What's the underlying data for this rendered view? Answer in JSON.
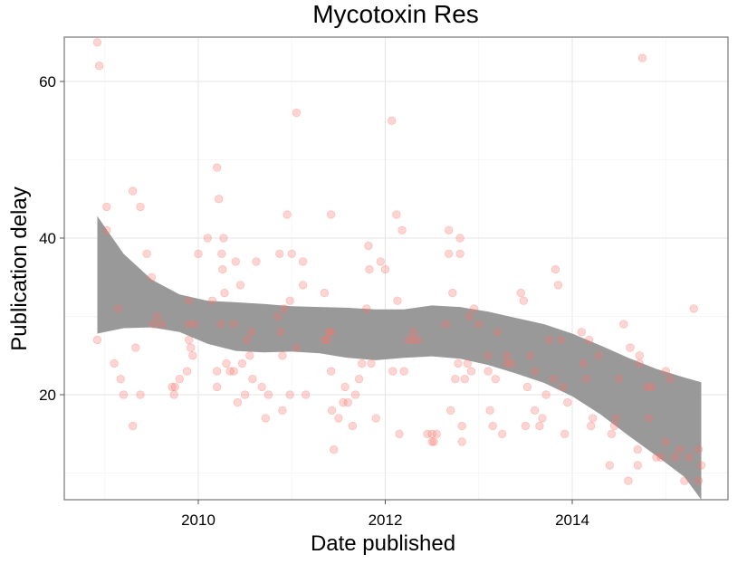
{
  "chart_data": {
    "type": "scatter",
    "title": "Mycotoxin Res",
    "xlabel": "Date published",
    "ylabel": "Publication delay",
    "x_tick_labels": [
      "2010",
      "2012",
      "2014"
    ],
    "x_ticks": [
      2010,
      2012,
      2014
    ],
    "y_tick_labels": [
      "20",
      "40",
      "60"
    ],
    "y_ticks": [
      20,
      40,
      60
    ],
    "xlim": [
      2008.8,
      2015.8
    ],
    "ylim": [
      6.5,
      66
    ],
    "grid": true,
    "legend": "none",
    "point_color": "#F8766D",
    "band_color": "#999999",
    "points": [
      [
        2008.92,
        65
      ],
      [
        2008.94,
        62
      ],
      [
        2008.92,
        27
      ],
      [
        2009.02,
        41
      ],
      [
        2009.02,
        44
      ],
      [
        2009.1,
        24
      ],
      [
        2009.14,
        31
      ],
      [
        2009.17,
        22
      ],
      [
        2009.2,
        20
      ],
      [
        2009.3,
        16
      ],
      [
        2009.3,
        46
      ],
      [
        2009.33,
        26
      ],
      [
        2009.38,
        44
      ],
      [
        2009.38,
        20
      ],
      [
        2009.45,
        38
      ],
      [
        2009.5,
        35
      ],
      [
        2009.52,
        29
      ],
      [
        2009.56,
        30
      ],
      [
        2009.61,
        29
      ],
      [
        2009.72,
        21
      ],
      [
        2009.74,
        20
      ],
      [
        2009.75,
        21
      ],
      [
        2009.8,
        22
      ],
      [
        2009.88,
        23
      ],
      [
        2009.9,
        29
      ],
      [
        2009.9,
        27
      ],
      [
        2009.9,
        32
      ],
      [
        2009.92,
        26
      ],
      [
        2009.94,
        25
      ],
      [
        2009.96,
        29
      ],
      [
        2010.0,
        38
      ],
      [
        2010.1,
        40
      ],
      [
        2010.15,
        32
      ],
      [
        2010.2,
        49
      ],
      [
        2010.2,
        23
      ],
      [
        2010.2,
        21
      ],
      [
        2010.22,
        45
      ],
      [
        2010.24,
        29
      ],
      [
        2010.25,
        38
      ],
      [
        2010.26,
        36
      ],
      [
        2010.27,
        40
      ],
      [
        2010.28,
        33
      ],
      [
        2010.3,
        24
      ],
      [
        2010.34,
        23
      ],
      [
        2010.38,
        29
      ],
      [
        2010.38,
        23
      ],
      [
        2010.4,
        37
      ],
      [
        2010.42,
        19
      ],
      [
        2010.45,
        34
      ],
      [
        2010.47,
        24
      ],
      [
        2010.5,
        20
      ],
      [
        2010.52,
        27
      ],
      [
        2010.55,
        25
      ],
      [
        2010.57,
        28
      ],
      [
        2010.58,
        22
      ],
      [
        2010.62,
        37
      ],
      [
        2010.68,
        21
      ],
      [
        2010.72,
        17
      ],
      [
        2010.75,
        20
      ],
      [
        2010.85,
        30
      ],
      [
        2010.87,
        38
      ],
      [
        2010.88,
        28
      ],
      [
        2010.9,
        18
      ],
      [
        2010.9,
        25
      ],
      [
        2010.92,
        31
      ],
      [
        2010.95,
        43
      ],
      [
        2010.98,
        20
      ],
      [
        2010.98,
        32
      ],
      [
        2011.0,
        38
      ],
      [
        2011.05,
        56
      ],
      [
        2011.05,
        26
      ],
      [
        2011.12,
        37
      ],
      [
        2011.12,
        34
      ],
      [
        2011.15,
        20
      ],
      [
        2011.35,
        33
      ],
      [
        2011.35,
        27
      ],
      [
        2011.38,
        27
      ],
      [
        2011.4,
        28
      ],
      [
        2011.42,
        43
      ],
      [
        2011.42,
        28
      ],
      [
        2011.42,
        23
      ],
      [
        2011.43,
        18
      ],
      [
        2011.45,
        13
      ],
      [
        2011.5,
        17
      ],
      [
        2011.55,
        19
      ],
      [
        2011.57,
        21
      ],
      [
        2011.6,
        19
      ],
      [
        2011.65,
        16
      ],
      [
        2011.68,
        20
      ],
      [
        2011.72,
        22
      ],
      [
        2011.75,
        24
      ],
      [
        2011.8,
        31
      ],
      [
        2011.82,
        39
      ],
      [
        2011.83,
        36
      ],
      [
        2011.85,
        24
      ],
      [
        2011.9,
        17
      ],
      [
        2011.95,
        37
      ],
      [
        2012.0,
        36
      ],
      [
        2012.07,
        55
      ],
      [
        2012.08,
        23
      ],
      [
        2012.12,
        43
      ],
      [
        2012.13,
        32
      ],
      [
        2012.15,
        15
      ],
      [
        2012.18,
        41
      ],
      [
        2012.2,
        23
      ],
      [
        2012.25,
        27
      ],
      [
        2012.3,
        27
      ],
      [
        2012.3,
        28
      ],
      [
        2012.35,
        27
      ],
      [
        2012.45,
        15
      ],
      [
        2012.5,
        14
      ],
      [
        2012.5,
        15
      ],
      [
        2012.52,
        14
      ],
      [
        2012.55,
        15
      ],
      [
        2012.65,
        29
      ],
      [
        2012.68,
        41
      ],
      [
        2012.68,
        38
      ],
      [
        2012.7,
        18
      ],
      [
        2012.72,
        33
      ],
      [
        2012.75,
        22
      ],
      [
        2012.78,
        24
      ],
      [
        2012.8,
        38
      ],
      [
        2012.8,
        40
      ],
      [
        2012.82,
        14
      ],
      [
        2012.82,
        16
      ],
      [
        2012.85,
        22
      ],
      [
        2012.88,
        24
      ],
      [
        2012.9,
        30
      ],
      [
        2012.92,
        23
      ],
      [
        2012.95,
        31
      ],
      [
        2013.0,
        29
      ],
      [
        2013.1,
        23
      ],
      [
        2013.1,
        25
      ],
      [
        2013.12,
        18
      ],
      [
        2013.15,
        16
      ],
      [
        2013.18,
        22
      ],
      [
        2013.2,
        28
      ],
      [
        2013.25,
        15
      ],
      [
        2013.3,
        25
      ],
      [
        2013.3,
        24
      ],
      [
        2013.35,
        24
      ],
      [
        2013.45,
        33
      ],
      [
        2013.48,
        32
      ],
      [
        2013.5,
        16
      ],
      [
        2013.52,
        21
      ],
      [
        2013.55,
        25
      ],
      [
        2013.6,
        23
      ],
      [
        2013.6,
        18
      ],
      [
        2013.65,
        16
      ],
      [
        2013.68,
        17
      ],
      [
        2013.72,
        20
      ],
      [
        2013.75,
        27
      ],
      [
        2013.8,
        22
      ],
      [
        2013.82,
        36
      ],
      [
        2013.85,
        34
      ],
      [
        2013.88,
        27
      ],
      [
        2013.9,
        21
      ],
      [
        2013.92,
        15
      ],
      [
        2013.95,
        19
      ],
      [
        2014.1,
        28
      ],
      [
        2014.12,
        24
      ],
      [
        2014.15,
        22
      ],
      [
        2014.18,
        27
      ],
      [
        2014.2,
        16
      ],
      [
        2014.22,
        17
      ],
      [
        2014.28,
        25
      ],
      [
        2014.4,
        11
      ],
      [
        2014.42,
        15
      ],
      [
        2014.45,
        16
      ],
      [
        2014.47,
        17
      ],
      [
        2014.5,
        22
      ],
      [
        2014.55,
        29
      ],
      [
        2014.6,
        9
      ],
      [
        2014.62,
        26
      ],
      [
        2014.7,
        11
      ],
      [
        2014.7,
        13
      ],
      [
        2014.72,
        24
      ],
      [
        2014.72,
        25
      ],
      [
        2014.75,
        63
      ],
      [
        2014.8,
        21
      ],
      [
        2014.82,
        17
      ],
      [
        2014.85,
        21
      ],
      [
        2014.9,
        12
      ],
      [
        2014.95,
        12
      ],
      [
        2015.0,
        14
      ],
      [
        2015.0,
        23
      ],
      [
        2015.05,
        22
      ],
      [
        2015.1,
        12
      ],
      [
        2015.15,
        13
      ],
      [
        2015.2,
        9
      ],
      [
        2015.25,
        12
      ],
      [
        2015.3,
        31
      ],
      [
        2015.35,
        13
      ],
      [
        2015.35,
        9
      ],
      [
        2015.38,
        11
      ]
    ],
    "smooth_band": {
      "x": [
        2008.92,
        2009.2,
        2009.5,
        2009.8,
        2010.1,
        2010.4,
        2010.7,
        2011.0,
        2011.3,
        2011.6,
        2011.9,
        2012.2,
        2012.5,
        2012.8,
        2013.1,
        2013.4,
        2013.7,
        2014.0,
        2014.3,
        2014.6,
        2014.9,
        2015.2,
        2015.38
      ],
      "lower": [
        27.8,
        28.5,
        28.6,
        28.0,
        26.5,
        25.6,
        25.4,
        25.5,
        25.3,
        24.7,
        24.4,
        24.7,
        24.9,
        24.6,
        23.8,
        22.7,
        21.5,
        19.8,
        17.5,
        14.8,
        12.2,
        9.5,
        6.0
      ],
      "upper": [
        42.8,
        38.0,
        34.7,
        32.8,
        32.0,
        31.8,
        31.6,
        31.3,
        31.2,
        31.1,
        30.9,
        30.9,
        31.4,
        31.2,
        30.6,
        29.8,
        29.0,
        27.8,
        26.3,
        24.7,
        23.3,
        22.2,
        21.6
      ]
    }
  }
}
